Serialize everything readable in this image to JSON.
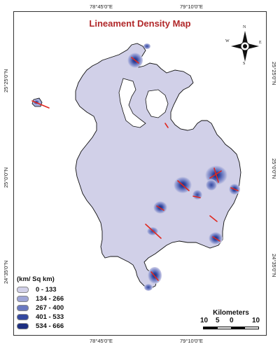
{
  "title": "Lineament Density Map",
  "coordinates": {
    "top": [
      "78°45'0\"E",
      "79°10'0\"E"
    ],
    "bottom": [
      "78°45'0\"E",
      "79°10'0\"E"
    ],
    "left": [
      "25°25'0\"N",
      "25°0'0\"N",
      "24°35'0\"N"
    ],
    "right": [
      "25°25'0\"N",
      "25°0'0\"N",
      "24°35'0\"N"
    ]
  },
  "legend": {
    "title": "(km/ Sq km)",
    "items": [
      {
        "label": "0 - 133",
        "color": "#d1d0e8"
      },
      {
        "label": "134 - 266",
        "color": "#9ea5d6"
      },
      {
        "label": "267 - 400",
        "color": "#6a79c0"
      },
      {
        "label": "401 - 533",
        "color": "#34489f"
      },
      {
        "label": "534 - 666",
        "color": "#1c2e80"
      }
    ]
  },
  "scalebar": {
    "title": "Kilometers",
    "ticks": [
      "10",
      "5",
      "0",
      "10"
    ]
  },
  "north_arrow": {
    "n": "N",
    "s": "S",
    "e": "E",
    "w": "W",
    "icon": "compass-rose-icon"
  },
  "colors": {
    "title": "#b1282a",
    "lineament": "#e0281f",
    "base_fill": "#d1d0e8",
    "outline": "#111111"
  }
}
